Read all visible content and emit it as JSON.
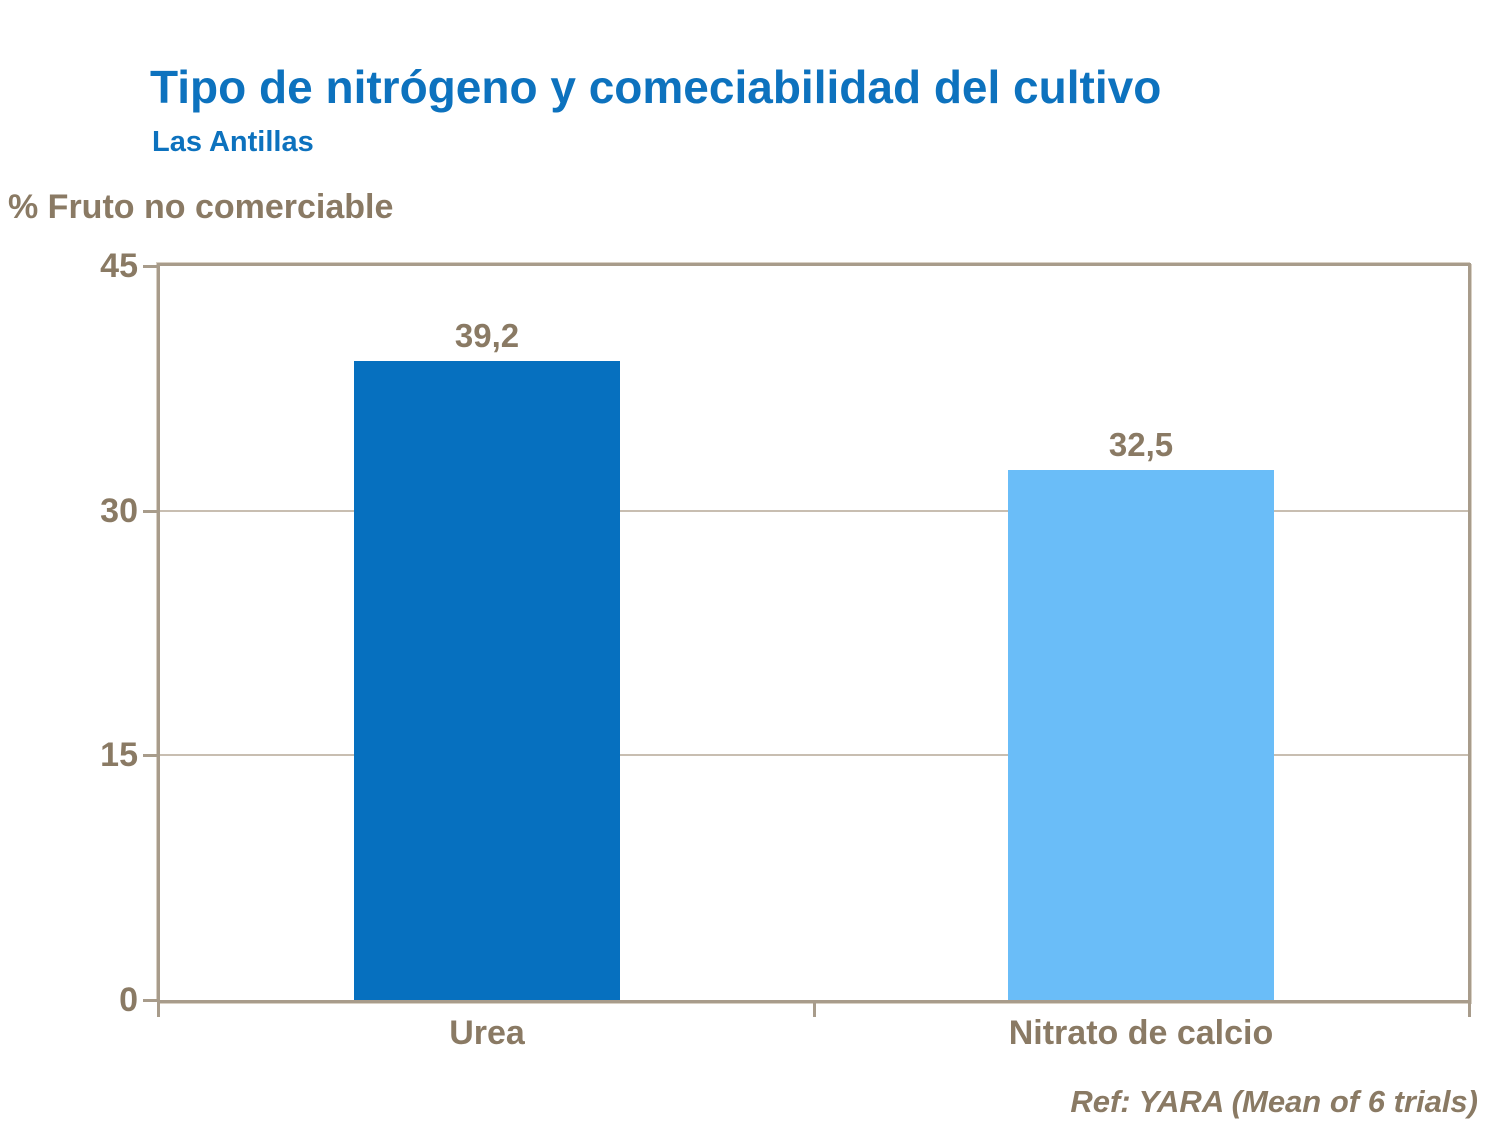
{
  "header": {
    "title": "Tipo de nitrógeno y comeciabilidad del cultivo",
    "subtitle": "Las Antillas"
  },
  "footer": {
    "reference": "Ref: YARA (Mean of 6 trials)"
  },
  "colors": {
    "title_blue": "#0d72be",
    "label_brown": "#8a7a64",
    "axis_frame": "#a89c8b",
    "gridline": "#c8beb1",
    "background": "#ffffff"
  },
  "chart_data": {
    "type": "bar",
    "title": "Tipo de nitrógeno y comeciabilidad del cultivo",
    "subtitle": "Las Antillas",
    "ylabel": "% Fruto no comerciable",
    "xlabel": "",
    "categories": [
      "Urea",
      "Nitrato de calcio"
    ],
    "values": [
      39.2,
      32.5
    ],
    "value_labels": [
      "39,2",
      "32,5"
    ],
    "bar_colors": [
      "#0670bf",
      "#6abdf8"
    ],
    "ylim": [
      0,
      45
    ],
    "yticks": [
      0,
      15,
      30,
      45
    ],
    "grid": true,
    "legend": false,
    "annotation": "Ref: YARA (Mean of 6 trials)"
  }
}
